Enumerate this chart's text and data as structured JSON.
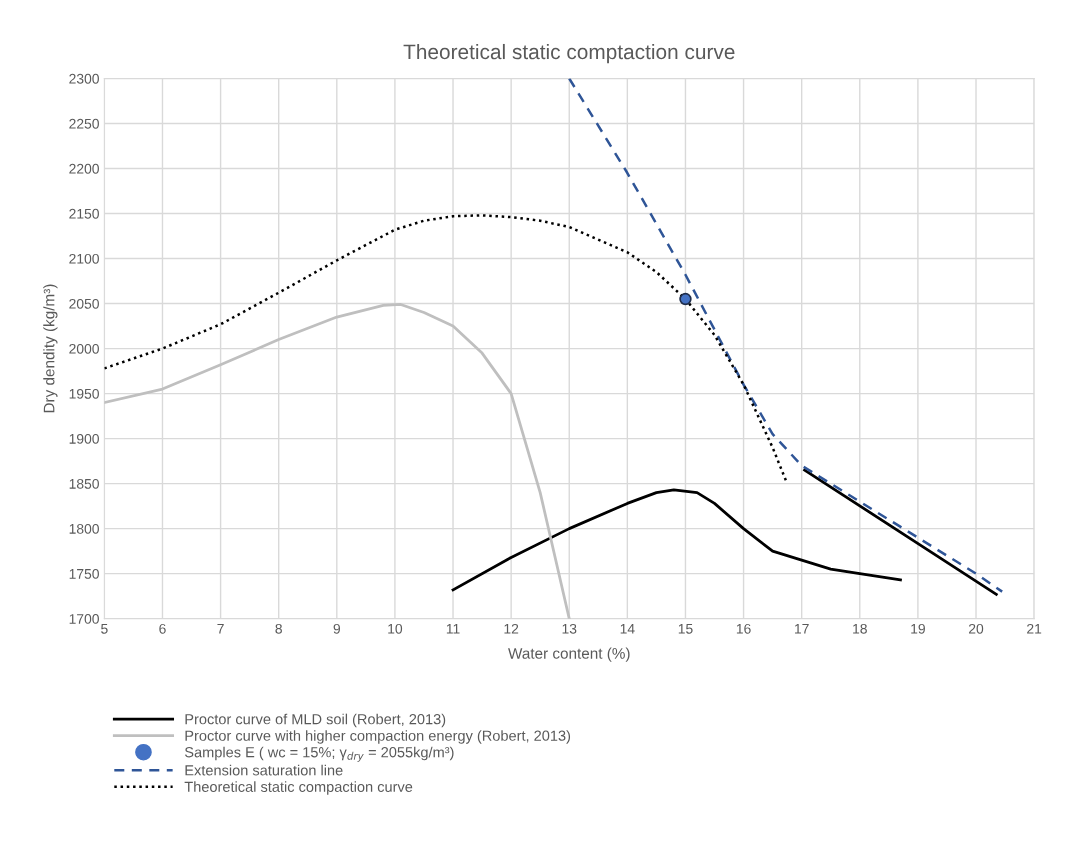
{
  "chart_data": {
    "type": "line",
    "title": "Theoretical static comptaction curve",
    "xlabel": "Water content (%)",
    "ylabel": "Dry dendity (kg/m³)",
    "xlim": [
      5,
      21
    ],
    "xticks": [
      5,
      6,
      7,
      8,
      9,
      10,
      11,
      12,
      13,
      14,
      15,
      16,
      17,
      18,
      19,
      20,
      21
    ],
    "ylim": [
      1700,
      2300
    ],
    "yticks": [
      1700,
      1750,
      1800,
      1850,
      1900,
      1950,
      2000,
      2050,
      2100,
      2150,
      2200,
      2250,
      2300
    ],
    "grid": true,
    "legend": "bottom",
    "marker": "none",
    "series": [
      {
        "name": "Proctor curve of MLD soil (Robert, 2013)",
        "color": "#000000",
        "line_style": "solid",
        "x": [
          11,
          12,
          13,
          14,
          14.5,
          14.8,
          15.2,
          15.5,
          16,
          16.5,
          17,
          17.5,
          18,
          18.7,
          null,
          17.05,
          20.35
        ],
        "values": [
          1732,
          1768,
          1800,
          1828,
          1840,
          1843,
          1840,
          1828,
          1800,
          1775,
          1765,
          1755,
          1750,
          1743,
          null,
          1865,
          1727
        ]
      },
      {
        "name": "Proctor curve with higher compaction energy (Robert, 2013)",
        "color": "#bfbfbf",
        "line_style": "solid",
        "x": [
          5,
          6,
          7,
          8,
          9,
          9.8,
          10.1,
          10.5,
          11,
          11.5,
          12,
          12.5,
          13
        ],
        "values": [
          1940,
          1955,
          1982,
          2010,
          2035,
          2048,
          2049,
          2040,
          2025,
          1995,
          1950,
          1840,
          1700
        ]
      },
      {
        "name": "Samples E ( wc = 15%; γ$_{dry}$ = 2055kg/m³)",
        "type": "scatter",
        "marker": "circle",
        "color": "#4472c4",
        "x": [
          15
        ],
        "values": [
          2055
        ]
      },
      {
        "name": "Extension saturation line",
        "color": "#2f5597",
        "line_style": "dashed",
        "x": [
          13,
          14,
          15,
          16,
          16.5,
          17,
          18,
          19,
          20,
          20.45
        ],
        "values": [
          2300,
          2195,
          2082,
          1960,
          1905,
          1870,
          1830,
          1790,
          1750,
          1730
        ]
      },
      {
        "name": "Theoretical static compaction curve",
        "color": "#000000",
        "line_style": "dotted",
        "x": [
          5,
          6,
          7,
          8,
          9,
          10,
          10.5,
          11,
          11.5,
          12,
          12.5,
          13,
          14,
          14.5,
          15,
          15.5,
          16,
          16.5,
          16.75
        ],
        "values": [
          1978,
          2000,
          2027,
          2062,
          2098,
          2132,
          2142,
          2147,
          2148,
          2146,
          2142,
          2135,
          2107,
          2085,
          2055,
          2015,
          1960,
          1890,
          1850
        ]
      }
    ]
  }
}
